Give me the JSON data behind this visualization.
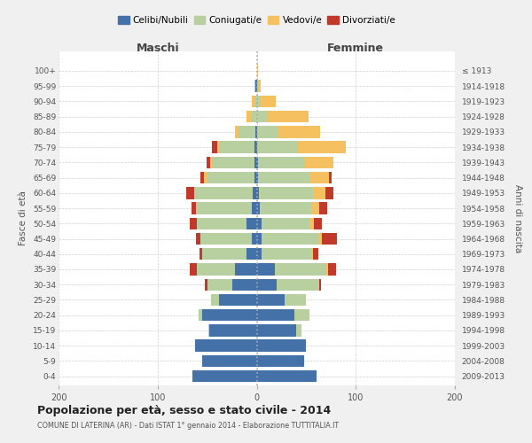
{
  "age_groups": [
    "0-4",
    "5-9",
    "10-14",
    "15-19",
    "20-24",
    "25-29",
    "30-34",
    "35-39",
    "40-44",
    "45-49",
    "50-54",
    "55-59",
    "60-64",
    "65-69",
    "70-74",
    "75-79",
    "80-84",
    "85-89",
    "90-94",
    "95-99",
    "100+"
  ],
  "birth_years": [
    "2009-2013",
    "2004-2008",
    "1999-2003",
    "1994-1998",
    "1989-1993",
    "1984-1988",
    "1979-1983",
    "1974-1978",
    "1969-1973",
    "1964-1968",
    "1959-1963",
    "1954-1958",
    "1949-1953",
    "1944-1948",
    "1939-1943",
    "1934-1938",
    "1929-1933",
    "1924-1928",
    "1919-1923",
    "1914-1918",
    "≤ 1913"
  ],
  "maschi": {
    "celibi": [
      65,
      55,
      62,
      48,
      55,
      38,
      25,
      22,
      10,
      5,
      10,
      5,
      4,
      2,
      2,
      2,
      1,
      0,
      0,
      1,
      0
    ],
    "coniugati": [
      0,
      0,
      0,
      1,
      4,
      8,
      25,
      38,
      45,
      52,
      50,
      55,
      58,
      48,
      42,
      35,
      17,
      5,
      2,
      1,
      0
    ],
    "vedovi": [
      0,
      0,
      0,
      0,
      0,
      0,
      0,
      0,
      0,
      0,
      0,
      1,
      1,
      3,
      3,
      3,
      4,
      5,
      3,
      0,
      0
    ],
    "divorziati": [
      0,
      0,
      0,
      0,
      0,
      0,
      2,
      8,
      3,
      4,
      8,
      5,
      8,
      4,
      4,
      5,
      0,
      0,
      0,
      0,
      0
    ]
  },
  "femmine": {
    "nubili": [
      60,
      48,
      50,
      40,
      38,
      28,
      20,
      18,
      5,
      5,
      5,
      3,
      2,
      1,
      1,
      0,
      0,
      0,
      0,
      0,
      0
    ],
    "coniugate": [
      0,
      0,
      0,
      5,
      15,
      22,
      42,
      52,
      50,
      58,
      48,
      52,
      55,
      52,
      48,
      42,
      22,
      10,
      4,
      2,
      0
    ],
    "vedove": [
      0,
      0,
      0,
      0,
      0,
      0,
      1,
      2,
      2,
      3,
      5,
      8,
      12,
      20,
      28,
      48,
      42,
      42,
      15,
      2,
      1
    ],
    "divorziate": [
      0,
      0,
      0,
      0,
      0,
      0,
      2,
      8,
      5,
      15,
      8,
      8,
      8,
      3,
      0,
      0,
      0,
      0,
      0,
      0,
      0
    ]
  },
  "colors": {
    "celibi": "#4472a8",
    "coniugati": "#b8d0a0",
    "vedovi": "#f5c060",
    "divorziati": "#c0392b"
  },
  "xlim": 200,
  "title": "Popolazione per età, sesso e stato civile - 2014",
  "subtitle": "COMUNE DI LATERINA (AR) - Dati ISTAT 1° gennaio 2014 - Elaborazione TUTTITALIA.IT",
  "ylabel": "Fasce di età",
  "ylabel_right": "Anni di nascita",
  "xlabel_left": "Maschi",
  "xlabel_right": "Femmine",
  "bg_color": "#f0f0f0",
  "plot_bg": "#ffffff"
}
